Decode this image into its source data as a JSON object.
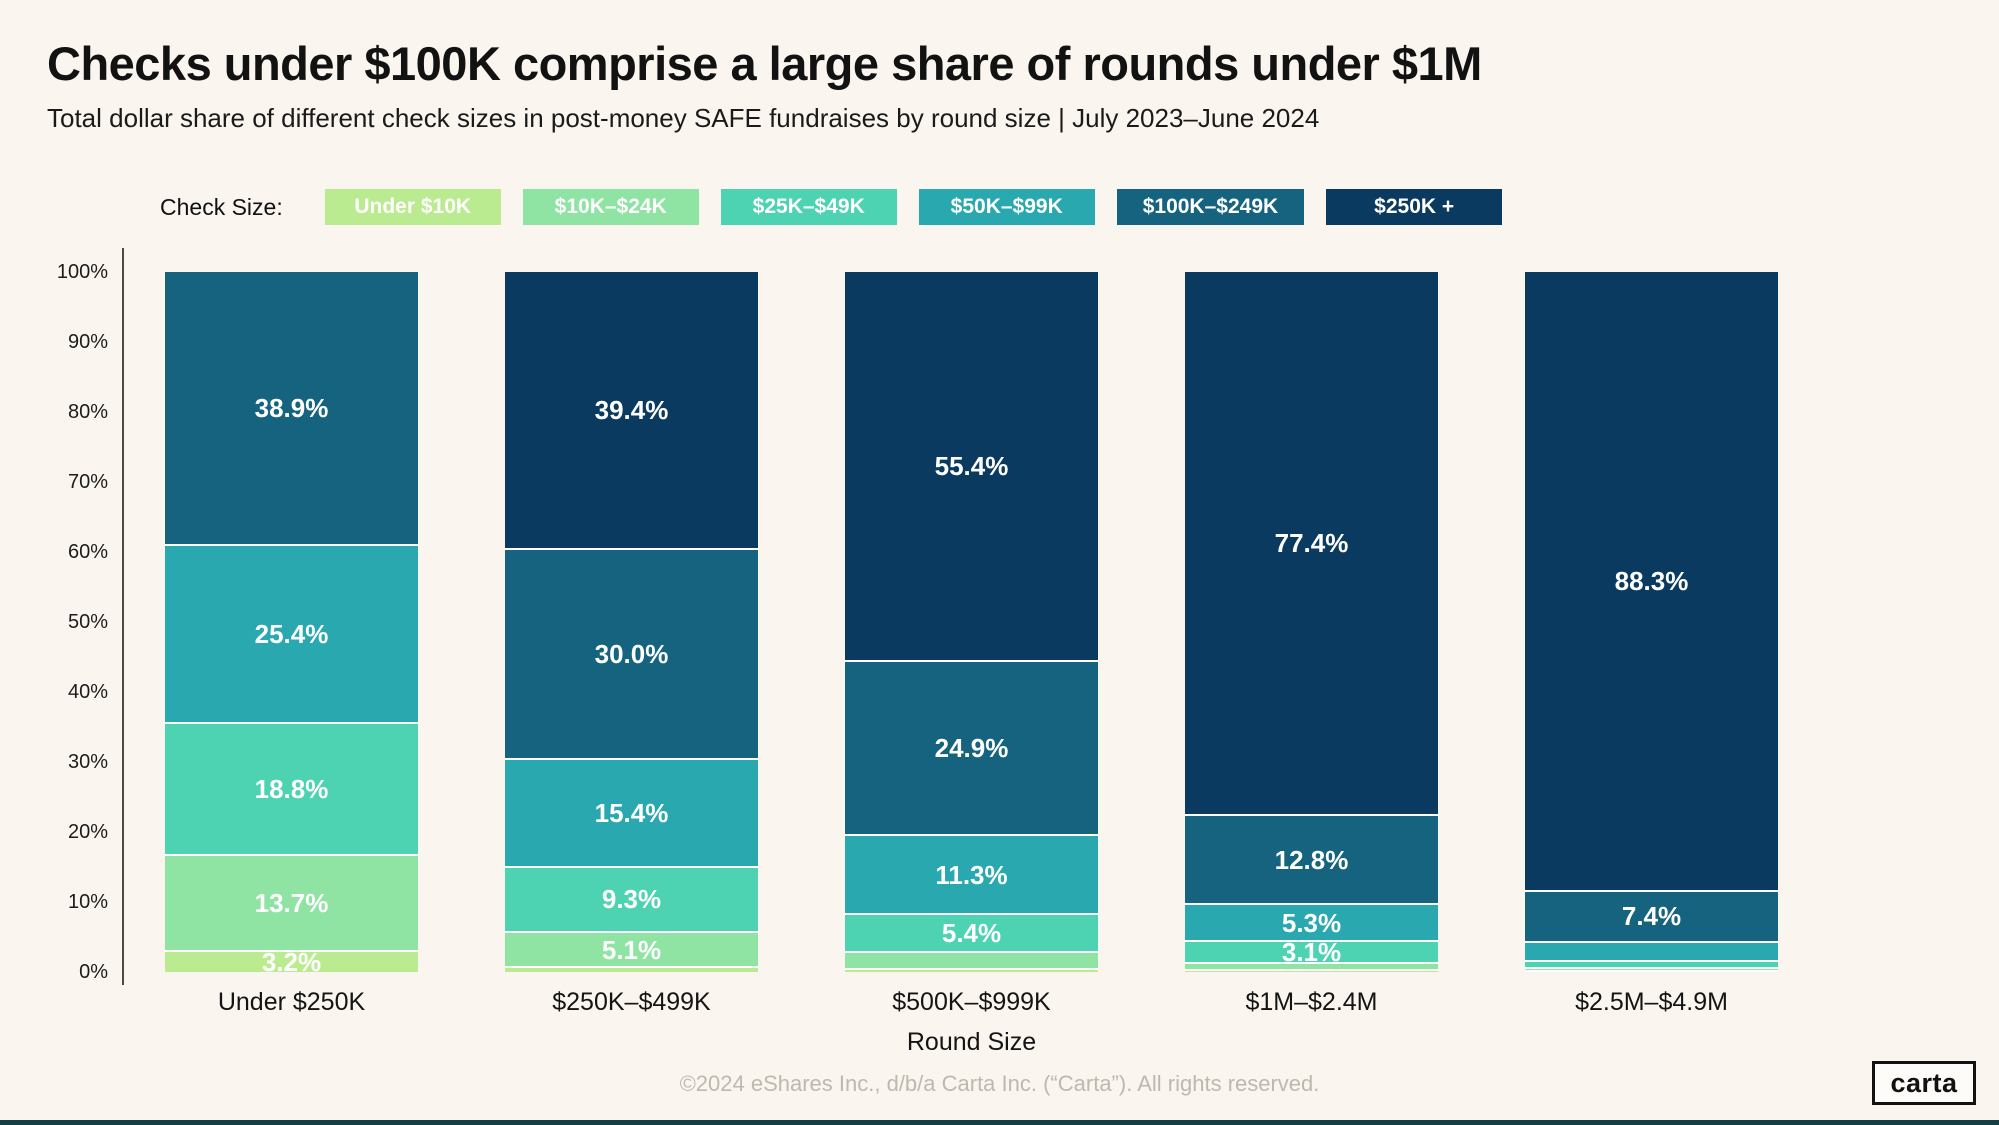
{
  "page": {
    "title": "Checks under $100K comprise a large share of rounds under $1M",
    "subtitle": "Total dollar share of different check sizes in post-money SAFE fundraises by round size | July 2023–June 2024",
    "footer": "©2024 eShares Inc., d/b/a Carta Inc. (“Carta”). All rights reserved.",
    "logo_text": "carta"
  },
  "colors": {
    "background": "#FAF6EF",
    "axis_line": "#4a4a4a",
    "bottom_bar": "#123f45",
    "bar_value_text": "#ffffff"
  },
  "legend": {
    "label": "Check Size:",
    "items": [
      {
        "label": "Under $10K",
        "color": "#BBEB90"
      },
      {
        "label": "$10K–$24K",
        "color": "#8FE3A3"
      },
      {
        "label": "$25K–$49K",
        "color": "#4DD2B2"
      },
      {
        "label": "$50K–$99K",
        "color": "#29A9AF"
      },
      {
        "label": "$100K–$249K",
        "color": "#15637F"
      },
      {
        "label": "$250K +",
        "color": "#0B3A61"
      }
    ]
  },
  "chart_data": {
    "type": "bar",
    "stacked": true,
    "title": "Checks under $100K comprise a large share of rounds under $1M",
    "xlabel": "Round Size",
    "ylabel": "",
    "ylim": [
      0,
      100
    ],
    "yticks": [
      "0%",
      "10%",
      "20%",
      "30%",
      "40%",
      "50%",
      "60%",
      "70%",
      "80%",
      "90%",
      "100%"
    ],
    "grid": false,
    "legend_position": "top",
    "categories": [
      "Under $250K",
      "$250K–$499K",
      "$500K–$999K",
      "$1M–$2.4M",
      "$2.5M–$4.9M"
    ],
    "series": [
      {
        "name": "Under $10K",
        "color": "#BBEB90",
        "values": [
          3.2,
          0.8,
          0.6,
          0.4,
          0.2
        ],
        "labels": [
          "3.2%",
          null,
          null,
          null,
          null
        ]
      },
      {
        "name": "$10K–$24K",
        "color": "#8FE3A3",
        "values": [
          13.7,
          5.1,
          2.4,
          1.0,
          0.5
        ],
        "labels": [
          "13.7%",
          "5.1%",
          null,
          null,
          null
        ]
      },
      {
        "name": "$25K–$49K",
        "color": "#4DD2B2",
        "values": [
          18.8,
          9.3,
          5.4,
          3.1,
          1.0
        ],
        "labels": [
          "18.8%",
          "9.3%",
          "5.4%",
          "3.1%",
          null
        ]
      },
      {
        "name": "$50K–$99K",
        "color": "#29A9AF",
        "values": [
          25.4,
          15.4,
          11.3,
          5.3,
          2.6
        ],
        "labels": [
          "25.4%",
          "15.4%",
          "11.3%",
          "5.3%",
          null
        ]
      },
      {
        "name": "$100K–$249K",
        "color": "#15637F",
        "values": [
          38.9,
          30.0,
          24.9,
          12.8,
          7.4
        ],
        "labels": [
          "38.9%",
          "30.0%",
          "24.9%",
          "12.8%",
          "7.4%"
        ]
      },
      {
        "name": "$250K +",
        "color": "#0B3A61",
        "values": [
          0,
          39.4,
          55.4,
          77.4,
          88.3
        ],
        "labels": [
          null,
          "39.4%",
          "55.4%",
          "77.4%",
          "88.3%"
        ]
      }
    ]
  }
}
